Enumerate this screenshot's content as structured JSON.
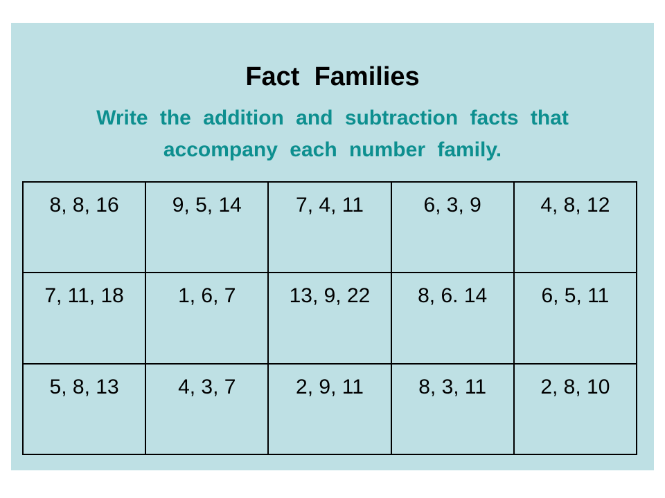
{
  "slide": {
    "title": "Fact  Families",
    "subtitle": "Write  the  addition  and  subtraction  facts  that  accompany  each  number  family.",
    "background_color": "#bee0e4",
    "subtitle_color": "#0d8f8f"
  },
  "table": {
    "rows": [
      [
        "8, 8, 16",
        "9, 5, 14",
        "7, 4, 11",
        "6, 3, 9",
        "4, 8, 12"
      ],
      [
        "7, 11, 18",
        "1, 6, 7",
        "13, 9, 22",
        "8, 6. 14",
        "6, 5, 11"
      ],
      [
        "5, 8, 13",
        "4, 3, 7",
        "2, 9, 11",
        "8, 3, 11",
        "2, 8, 10"
      ]
    ]
  }
}
